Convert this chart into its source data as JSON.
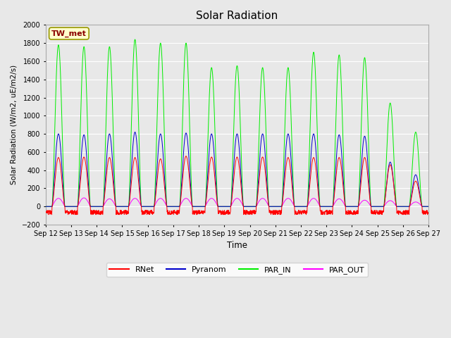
{
  "title": "Solar Radiation",
  "ylabel": "Solar Radiation (W/m2, uE/m2/s)",
  "xlabel": "Time",
  "site_label": "TW_met",
  "ylim": [
    -200,
    2000
  ],
  "xlim": [
    0,
    360
  ],
  "x_tick_labels": [
    "Sep 12",
    "Sep 13",
    "Sep 14",
    "Sep 15",
    "Sep 16",
    "Sep 17",
    "Sep 18",
    "Sep 19",
    "Sep 20",
    "Sep 21",
    "Sep 22",
    "Sep 23",
    "Sep 24",
    "Sep 25",
    "Sep 26",
    "Sep 27"
  ],
  "x_tick_positions": [
    0,
    24,
    48,
    72,
    96,
    120,
    144,
    168,
    192,
    216,
    240,
    264,
    288,
    312,
    336,
    360
  ],
  "yticks": [
    -200,
    0,
    200,
    400,
    600,
    800,
    1000,
    1200,
    1400,
    1600,
    1800,
    2000
  ],
  "colors": {
    "RNet": "#ff0000",
    "Pyranom": "#0000cc",
    "PAR_IN": "#00ee00",
    "PAR_OUT": "#ff00ff"
  },
  "fig_bg": "#e8e8e8",
  "plot_bg": "#e8e8e8",
  "grid_color": "#ffffff",
  "par_in_peaks": [
    1780,
    1760,
    1760,
    1840,
    1800,
    1800,
    1530,
    1550,
    1530,
    1530,
    1700,
    1670,
    1640,
    1140,
    820
  ],
  "pyranom_peaks": [
    800,
    790,
    800,
    820,
    800,
    810,
    800,
    800,
    800,
    800,
    800,
    790,
    775,
    490,
    350
  ],
  "rnet_peaks": [
    540,
    545,
    540,
    540,
    525,
    555,
    545,
    545,
    545,
    540,
    540,
    540,
    540,
    460,
    280
  ],
  "par_out_peaks": [
    90,
    95,
    85,
    90,
    90,
    90,
    90,
    90,
    90,
    90,
    90,
    85,
    70,
    65,
    50
  ],
  "n_days": 15,
  "pts_per_day": 144
}
